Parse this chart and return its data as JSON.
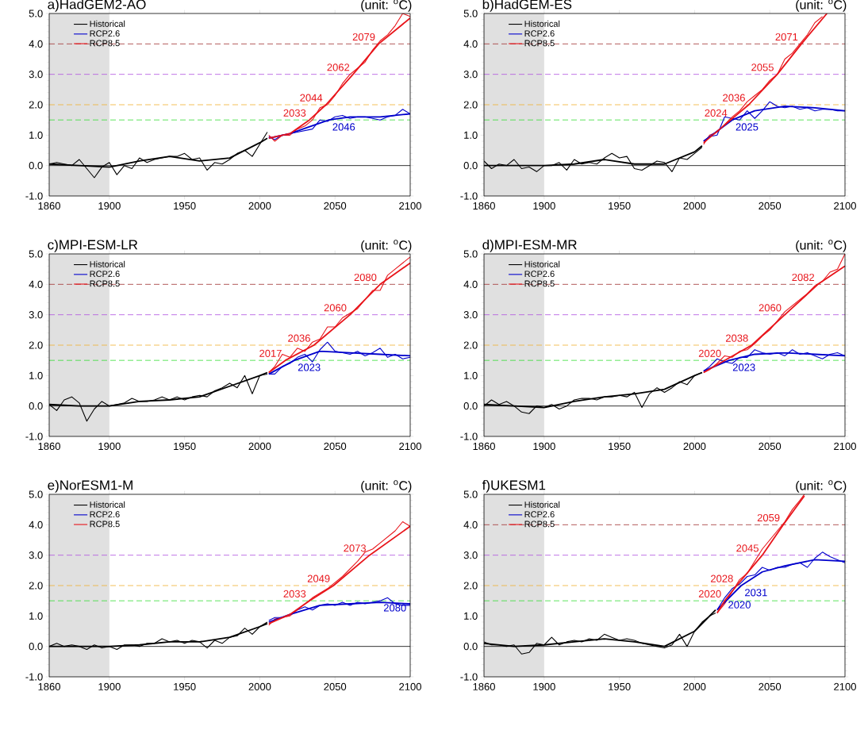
{
  "chart_data": [
    {
      "type": "line",
      "title": "a)HadGEM2-AO",
      "subtitle": "(unit: $^{o}$C)",
      "legend": "top left",
      "marker": "none",
      "line_style": "solid",
      "xlim": [
        1860,
        2100
      ],
      "ylim": [
        -1,
        5
      ],
      "xticks": [
        1860,
        1900,
        1950,
        2000,
        2050,
        2100
      ],
      "yticks": [
        {
          "value": -1,
          "label": "-1.0"
        },
        {
          "value": 0,
          "label": "0.0"
        },
        {
          "value": 1,
          "label": "1.0"
        },
        {
          "value": 2,
          "label": "2.0"
        },
        {
          "value": 3,
          "label": "3.0"
        },
        {
          "value": 4,
          "label": "4.0"
        },
        {
          "value": 5,
          "label": "5.0"
        }
      ],
      "series": [
        {
          "name": "Historical",
          "color": "#000000",
          "x": [
            1860,
            1865,
            1870,
            1875,
            1880,
            1885,
            1890,
            1895,
            1900,
            1905,
            1910,
            1915,
            1920,
            1925,
            1930,
            1935,
            1940,
            1945,
            1950,
            1955,
            1960,
            1965,
            1970,
            1975,
            1980,
            1985,
            1990,
            1995,
            2000,
            2005
          ],
          "values": [
            0.05,
            0.1,
            0.05,
            0.0,
            0.2,
            -0.1,
            -0.4,
            -0.05,
            0.1,
            -0.3,
            0.0,
            -0.1,
            0.25,
            0.1,
            0.2,
            0.25,
            0.3,
            0.3,
            0.4,
            0.2,
            0.25,
            -0.15,
            0.1,
            0.05,
            0.2,
            0.4,
            0.5,
            0.3,
            0.7,
            1.1
          ]
        },
        {
          "name": "RCP2.6",
          "color": "#0000cc",
          "x": [
            2006,
            2010,
            2015,
            2020,
            2025,
            2030,
            2035,
            2040,
            2045,
            2050,
            2055,
            2060,
            2065,
            2070,
            2075,
            2080,
            2085,
            2090,
            2095,
            2100
          ],
          "values": [
            0.95,
            0.85,
            1.0,
            1.05,
            1.1,
            1.15,
            1.2,
            1.5,
            1.45,
            1.6,
            1.65,
            1.55,
            1.6,
            1.6,
            1.55,
            1.5,
            1.6,
            1.65,
            1.85,
            1.7
          ]
        },
        {
          "name": "RCP8.5",
          "color": "#e8141a",
          "x": [
            2006,
            2010,
            2015,
            2020,
            2025,
            2030,
            2035,
            2040,
            2045,
            2050,
            2055,
            2060,
            2065,
            2070,
            2075,
            2080,
            2085,
            2090,
            2095,
            2100
          ],
          "values": [
            1.0,
            0.8,
            1.0,
            1.0,
            1.2,
            1.3,
            1.5,
            1.9,
            2.0,
            2.3,
            2.7,
            3.0,
            3.2,
            3.4,
            3.8,
            4.1,
            4.3,
            4.6,
            5.0,
            4.9
          ]
        },
        {
          "color": "#000000",
          "x": [
            1860,
            1880,
            1900,
            1920,
            1940,
            1960,
            1980,
            2000,
            2005
          ],
          "values": [
            0.05,
            0.0,
            -0.05,
            0.15,
            0.3,
            0.15,
            0.25,
            0.75,
            0.9
          ]
        },
        {
          "color": "#0000cc",
          "x": [
            2006,
            2020,
            2046,
            2060,
            2080,
            2100
          ],
          "values": [
            0.9,
            1.05,
            1.5,
            1.6,
            1.6,
            1.7
          ]
        },
        {
          "color": "#e8141a",
          "x": [
            2006,
            2020,
            2033,
            2044,
            2062,
            2079,
            2100
          ],
          "values": [
            0.9,
            1.05,
            1.5,
            2.0,
            3.0,
            4.0,
            4.85
          ]
        }
      ],
      "ref_lines": [
        {
          "axis": "y",
          "value": 0,
          "color": "#000000",
          "line_style": "solid"
        },
        {
          "axis": "y",
          "value": 1.5,
          "color": "#33dd33",
          "line_style": "dashed"
        },
        {
          "axis": "y",
          "value": 2,
          "color": "#f0b030",
          "line_style": "dashed"
        },
        {
          "axis": "y",
          "value": 3,
          "color": "#b050e0",
          "line_style": "dashed"
        },
        {
          "axis": "y",
          "value": 4,
          "color": "#a03030",
          "line_style": "dashed"
        }
      ],
      "bands": [
        {
          "axis": "x",
          "from": 1860,
          "to": 1900,
          "color": "#e0e0e0"
        }
      ],
      "annotations": [
        {
          "text": "2079",
          "x": 2079,
          "y": 4.0
        },
        {
          "text": "2062",
          "x": 2062,
          "y": 3.0
        },
        {
          "text": "2044",
          "x": 2044,
          "y": 2.0
        },
        {
          "text": "2033",
          "x": 2033,
          "y": 1.5
        },
        {
          "text": "2046",
          "x": 2046,
          "y": 1.5
        }
      ]
    },
    {
      "type": "line",
      "title": "b)HadGEM-ES",
      "subtitle": "(unit: $^{o}$C)",
      "legend": "top left",
      "marker": "none",
      "line_style": "solid",
      "xlim": [
        1860,
        2100
      ],
      "ylim": [
        -1,
        5
      ],
      "xticks": [
        1860,
        1900,
        1950,
        2000,
        2050,
        2100
      ],
      "yticks": [
        {
          "value": -1,
          "label": "-1.0"
        },
        {
          "value": 0,
          "label": "0.0"
        },
        {
          "value": 1,
          "label": "1.0"
        },
        {
          "value": 2,
          "label": "2.0"
        },
        {
          "value": 3,
          "label": "3.0"
        },
        {
          "value": 4,
          "label": "4.0"
        },
        {
          "value": 5,
          "label": "5.0"
        }
      ],
      "series": [
        {
          "name": "Historical",
          "color": "#000000",
          "x": [
            1860,
            1865,
            1870,
            1875,
            1880,
            1885,
            1890,
            1895,
            1900,
            1905,
            1910,
            1915,
            1920,
            1925,
            1930,
            1935,
            1940,
            1945,
            1950,
            1955,
            1960,
            1965,
            1970,
            1975,
            1980,
            1985,
            1990,
            1995,
            2000,
            2005
          ],
          "values": [
            0.15,
            -0.1,
            0.05,
            0.0,
            0.2,
            -0.1,
            -0.05,
            -0.2,
            0.0,
            0.0,
            0.1,
            -0.15,
            0.2,
            0.05,
            0.1,
            0.05,
            0.25,
            0.4,
            0.25,
            0.3,
            -0.1,
            -0.15,
            0.0,
            0.15,
            0.1,
            -0.2,
            0.25,
            0.2,
            0.4,
            0.6
          ]
        },
        {
          "name": "RCP2.6",
          "color": "#0000cc",
          "x": [
            2006,
            2010,
            2015,
            2020,
            2025,
            2030,
            2035,
            2040,
            2045,
            2050,
            2055,
            2060,
            2065,
            2070,
            2075,
            2080,
            2085,
            2090,
            2095,
            2100
          ],
          "values": [
            0.8,
            0.95,
            1.0,
            1.6,
            1.55,
            1.5,
            1.8,
            1.55,
            1.8,
            2.1,
            1.95,
            1.9,
            1.95,
            1.85,
            1.9,
            1.8,
            1.85,
            1.85,
            1.8,
            1.8
          ]
        },
        {
          "name": "RCP8.5",
          "color": "#e8141a",
          "x": [
            2006,
            2010,
            2015,
            2020,
            2025,
            2030,
            2035,
            2040,
            2045,
            2050,
            2055,
            2060,
            2065,
            2070,
            2075,
            2080,
            2085
          ],
          "values": [
            0.7,
            1.0,
            1.1,
            1.35,
            1.6,
            1.8,
            2.1,
            2.3,
            2.5,
            2.8,
            3.0,
            3.5,
            3.7,
            4.0,
            4.3,
            4.7,
            4.9
          ]
        },
        {
          "color": "#000000",
          "x": [
            1860,
            1880,
            1900,
            1920,
            1940,
            1960,
            1980,
            2000,
            2005
          ],
          "values": [
            0.0,
            0.0,
            0.0,
            0.05,
            0.2,
            0.05,
            0.05,
            0.45,
            0.65
          ]
        },
        {
          "color": "#0000cc",
          "x": [
            2006,
            2025,
            2040,
            2060,
            2080,
            2100
          ],
          "values": [
            0.8,
            1.5,
            1.8,
            1.95,
            1.9,
            1.8
          ]
        },
        {
          "color": "#e8141a",
          "x": [
            2006,
            2024,
            2036,
            2055,
            2071,
            2088
          ],
          "values": [
            0.75,
            1.5,
            2.0,
            3.0,
            4.0,
            5.0
          ]
        }
      ],
      "ref_lines": [
        {
          "axis": "y",
          "value": 0,
          "color": "#000000",
          "line_style": "solid"
        },
        {
          "axis": "y",
          "value": 1.5,
          "color": "#33dd33",
          "line_style": "dashed"
        },
        {
          "axis": "y",
          "value": 2,
          "color": "#f0b030",
          "line_style": "dashed"
        },
        {
          "axis": "y",
          "value": 3,
          "color": "#b050e0",
          "line_style": "dashed"
        },
        {
          "axis": "y",
          "value": 4,
          "color": "#a03030",
          "line_style": "dashed"
        }
      ],
      "bands": [
        {
          "axis": "x",
          "from": 1860,
          "to": 1900,
          "color": "#e0e0e0"
        }
      ],
      "annotations": [
        {
          "text": "2071",
          "x": 2071,
          "y": 4.0
        },
        {
          "text": "2055",
          "x": 2055,
          "y": 3.0
        },
        {
          "text": "2036",
          "x": 2036,
          "y": 2.0
        },
        {
          "text": "2024",
          "x": 2024,
          "y": 1.5
        },
        {
          "text": "2025",
          "x": 2025,
          "y": 1.5
        }
      ]
    },
    {
      "type": "line",
      "title": "c)MPI-ESM-LR",
      "subtitle": "(unit: $^{o}$C)",
      "legend": "top left",
      "marker": "none",
      "line_style": "solid",
      "xlim": [
        1860,
        2100
      ],
      "ylim": [
        -1,
        5
      ],
      "xticks": [
        1860,
        1900,
        1950,
        2000,
        2050,
        2100
      ],
      "yticks": [
        {
          "value": -1,
          "label": "-1.0"
        },
        {
          "value": 0,
          "label": "0.0"
        },
        {
          "value": 1,
          "label": "1.0"
        },
        {
          "value": 2,
          "label": "2.0"
        },
        {
          "value": 3,
          "label": "3.0"
        },
        {
          "value": 4,
          "label": "4.0"
        },
        {
          "value": 5,
          "label": "5.0"
        }
      ],
      "series": [
        {
          "name": "Historical",
          "color": "#000000",
          "x": [
            1860,
            1865,
            1870,
            1875,
            1880,
            1885,
            1890,
            1895,
            1900,
            1905,
            1910,
            1915,
            1920,
            1925,
            1930,
            1935,
            1940,
            1945,
            1950,
            1955,
            1960,
            1965,
            1970,
            1975,
            1980,
            1985,
            1990,
            1995,
            2000,
            2005
          ],
          "values": [
            0.05,
            -0.15,
            0.2,
            0.3,
            0.1,
            -0.5,
            -0.1,
            0.15,
            0.0,
            0.05,
            0.1,
            0.25,
            0.15,
            0.15,
            0.2,
            0.3,
            0.2,
            0.3,
            0.2,
            0.3,
            0.35,
            0.3,
            0.5,
            0.6,
            0.75,
            0.6,
            1.0,
            0.4,
            1.0,
            1.05
          ]
        },
        {
          "name": "RCP2.6",
          "color": "#0000cc",
          "x": [
            2006,
            2010,
            2015,
            2020,
            2025,
            2030,
            2035,
            2040,
            2045,
            2050,
            2055,
            2060,
            2065,
            2070,
            2075,
            2080,
            2085,
            2090,
            2095,
            2100
          ],
          "values": [
            1.05,
            1.05,
            1.3,
            1.4,
            1.6,
            1.7,
            1.45,
            1.85,
            2.1,
            1.8,
            1.75,
            1.7,
            1.8,
            1.65,
            1.75,
            1.9,
            1.6,
            1.7,
            1.55,
            1.6
          ]
        },
        {
          "name": "RCP8.5",
          "color": "#e8141a",
          "x": [
            2006,
            2010,
            2015,
            2020,
            2025,
            2030,
            2035,
            2040,
            2045,
            2050,
            2055,
            2060,
            2065,
            2070,
            2075,
            2080,
            2085,
            2090,
            2095,
            2100
          ],
          "values": [
            1.1,
            1.3,
            1.7,
            1.6,
            1.9,
            1.8,
            2.1,
            2.2,
            2.6,
            2.6,
            2.9,
            3.05,
            3.2,
            3.5,
            3.8,
            3.8,
            4.3,
            4.5,
            4.7,
            4.9
          ]
        },
        {
          "color": "#000000",
          "x": [
            1860,
            1880,
            1900,
            1920,
            1940,
            1960,
            1980,
            2000,
            2005
          ],
          "values": [
            0.05,
            0.0,
            0.0,
            0.15,
            0.2,
            0.3,
            0.65,
            1.0,
            1.1
          ]
        },
        {
          "color": "#0000cc",
          "x": [
            2006,
            2023,
            2040,
            2060,
            2080,
            2100
          ],
          "values": [
            1.05,
            1.5,
            1.8,
            1.75,
            1.7,
            1.65
          ]
        },
        {
          "color": "#e8141a",
          "x": [
            2006,
            2017,
            2036,
            2060,
            2080,
            2100
          ],
          "values": [
            1.1,
            1.5,
            2.0,
            3.0,
            4.0,
            4.7
          ]
        }
      ],
      "ref_lines": [
        {
          "axis": "y",
          "value": 0,
          "color": "#000000",
          "line_style": "solid"
        },
        {
          "axis": "y",
          "value": 1.5,
          "color": "#33dd33",
          "line_style": "dashed"
        },
        {
          "axis": "y",
          "value": 2,
          "color": "#f0b030",
          "line_style": "dashed"
        },
        {
          "axis": "y",
          "value": 3,
          "color": "#b050e0",
          "line_style": "dashed"
        },
        {
          "axis": "y",
          "value": 4,
          "color": "#a03030",
          "line_style": "dashed"
        }
      ],
      "bands": [
        {
          "axis": "x",
          "from": 1860,
          "to": 1900,
          "color": "#e0e0e0"
        }
      ],
      "annotations": [
        {
          "text": "2080",
          "x": 2080,
          "y": 4.0
        },
        {
          "text": "2060",
          "x": 2060,
          "y": 3.0
        },
        {
          "text": "2036",
          "x": 2036,
          "y": 2.0
        },
        {
          "text": "2017",
          "x": 2017,
          "y": 1.5
        },
        {
          "text": "2023",
          "x": 2023,
          "y": 1.5
        }
      ]
    },
    {
      "type": "line",
      "title": "d)MPI-ESM-MR",
      "subtitle": "(unit: $^{o}$C)",
      "legend": "top left",
      "marker": "none",
      "line_style": "solid",
      "xlim": [
        1860,
        2100
      ],
      "ylim": [
        -1,
        5
      ],
      "xticks": [
        1860,
        1900,
        1950,
        2000,
        2050,
        2100
      ],
      "yticks": [
        {
          "value": -1,
          "label": "-1.0"
        },
        {
          "value": 0,
          "label": "0.0"
        },
        {
          "value": 1,
          "label": "1.0"
        },
        {
          "value": 2,
          "label": "2.0"
        },
        {
          "value": 3,
          "label": "3.0"
        },
        {
          "value": 4,
          "label": "4.0"
        },
        {
          "value": 5,
          "label": "5.0"
        }
      ],
      "series": [
        {
          "name": "Historical",
          "color": "#000000",
          "x": [
            1860,
            1865,
            1870,
            1875,
            1880,
            1885,
            1890,
            1895,
            1900,
            1905,
            1910,
            1915,
            1920,
            1925,
            1930,
            1935,
            1940,
            1945,
            1950,
            1955,
            1960,
            1965,
            1970,
            1975,
            1980,
            1985,
            1990,
            1995,
            2000,
            2005
          ],
          "values": [
            0.0,
            0.2,
            0.05,
            0.15,
            0.0,
            -0.2,
            -0.25,
            0.0,
            -0.05,
            0.05,
            -0.1,
            0.0,
            0.2,
            0.25,
            0.25,
            0.2,
            0.3,
            0.3,
            0.35,
            0.3,
            0.45,
            -0.05,
            0.4,
            0.6,
            0.45,
            0.6,
            0.8,
            0.7,
            1.0,
            1.1
          ]
        },
        {
          "name": "RCP2.6",
          "color": "#0000cc",
          "x": [
            2006,
            2010,
            2015,
            2020,
            2025,
            2030,
            2035,
            2040,
            2045,
            2050,
            2055,
            2060,
            2065,
            2070,
            2075,
            2080,
            2085,
            2090,
            2095,
            2100
          ],
          "values": [
            1.15,
            1.3,
            1.55,
            1.45,
            1.4,
            1.6,
            1.6,
            1.85,
            1.75,
            1.7,
            1.75,
            1.65,
            1.85,
            1.7,
            1.75,
            1.65,
            1.55,
            1.7,
            1.75,
            1.65
          ]
        },
        {
          "name": "RCP8.5",
          "color": "#e8141a",
          "x": [
            2006,
            2010,
            2015,
            2020,
            2025,
            2030,
            2035,
            2040,
            2045,
            2050,
            2055,
            2060,
            2065,
            2070,
            2075,
            2080,
            2085,
            2090,
            2095,
            2100
          ],
          "values": [
            1.1,
            1.2,
            1.4,
            1.65,
            1.6,
            1.8,
            1.85,
            2.05,
            2.3,
            2.5,
            2.8,
            3.1,
            3.3,
            3.5,
            3.7,
            3.95,
            4.1,
            4.4,
            4.5,
            5.0
          ]
        },
        {
          "color": "#000000",
          "x": [
            1860,
            1880,
            1900,
            1920,
            1940,
            1960,
            1980,
            2000,
            2005
          ],
          "values": [
            0.05,
            0.0,
            -0.05,
            0.15,
            0.3,
            0.4,
            0.55,
            1.0,
            1.1
          ]
        },
        {
          "color": "#0000cc",
          "x": [
            2006,
            2023,
            2040,
            2060,
            2080,
            2100
          ],
          "values": [
            1.15,
            1.5,
            1.7,
            1.75,
            1.7,
            1.65
          ]
        },
        {
          "color": "#e8141a",
          "x": [
            2006,
            2020,
            2038,
            2060,
            2082,
            2100
          ],
          "values": [
            1.1,
            1.5,
            2.0,
            3.0,
            4.0,
            4.6
          ]
        }
      ],
      "ref_lines": [
        {
          "axis": "y",
          "value": 0,
          "color": "#000000",
          "line_style": "solid"
        },
        {
          "axis": "y",
          "value": 1.5,
          "color": "#33dd33",
          "line_style": "dashed"
        },
        {
          "axis": "y",
          "value": 2,
          "color": "#f0b030",
          "line_style": "dashed"
        },
        {
          "axis": "y",
          "value": 3,
          "color": "#b050e0",
          "line_style": "dashed"
        },
        {
          "axis": "y",
          "value": 4,
          "color": "#a03030",
          "line_style": "dashed"
        }
      ],
      "bands": [
        {
          "axis": "x",
          "from": 1860,
          "to": 1900,
          "color": "#e0e0e0"
        }
      ],
      "annotations": [
        {
          "text": "2082",
          "x": 2082,
          "y": 4.0
        },
        {
          "text": "2060",
          "x": 2060,
          "y": 3.0
        },
        {
          "text": "2038",
          "x": 2038,
          "y": 2.0
        },
        {
          "text": "2020",
          "x": 2020,
          "y": 1.5
        },
        {
          "text": "2023",
          "x": 2023,
          "y": 1.5
        }
      ]
    },
    {
      "type": "line",
      "title": "e)NorESM1-M",
      "subtitle": "(unit: $^{o}$C)",
      "legend": "top left",
      "marker": "none",
      "line_style": "solid",
      "xlim": [
        1860,
        2100
      ],
      "ylim": [
        -1,
        5
      ],
      "xticks": [
        1860,
        1900,
        1950,
        2000,
        2050,
        2100
      ],
      "yticks": [
        {
          "value": -1,
          "label": "-1.0"
        },
        {
          "value": 0,
          "label": "0.0"
        },
        {
          "value": 1,
          "label": "1.0"
        },
        {
          "value": 2,
          "label": "2.0"
        },
        {
          "value": 3,
          "label": "3.0"
        },
        {
          "value": 4,
          "label": "4.0"
        },
        {
          "value": 5,
          "label": "5.0"
        }
      ],
      "series": [
        {
          "name": "Historical",
          "color": "#000000",
          "x": [
            1860,
            1865,
            1870,
            1875,
            1880,
            1885,
            1890,
            1895,
            1900,
            1905,
            1910,
            1915,
            1920,
            1925,
            1930,
            1935,
            1940,
            1945,
            1950,
            1955,
            1960,
            1965,
            1970,
            1975,
            1980,
            1985,
            1990,
            1995,
            2000,
            2005
          ],
          "values": [
            0.0,
            0.1,
            0.0,
            0.05,
            0.0,
            -0.1,
            0.05,
            -0.05,
            0.0,
            -0.1,
            0.05,
            0.05,
            0.0,
            0.1,
            0.1,
            0.25,
            0.15,
            0.2,
            0.1,
            0.2,
            0.15,
            -0.05,
            0.2,
            0.1,
            0.3,
            0.35,
            0.6,
            0.4,
            0.65,
            0.8
          ]
        },
        {
          "name": "RCP2.6",
          "color": "#0000cc",
          "x": [
            2006,
            2010,
            2015,
            2020,
            2025,
            2030,
            2035,
            2040,
            2045,
            2050,
            2055,
            2060,
            2065,
            2070,
            2075,
            2080,
            2085,
            2090,
            2095,
            2100
          ],
          "values": [
            0.85,
            0.95,
            0.95,
            1.05,
            1.2,
            1.3,
            1.2,
            1.35,
            1.4,
            1.35,
            1.45,
            1.35,
            1.45,
            1.4,
            1.45,
            1.5,
            1.6,
            1.4,
            1.35,
            1.35
          ]
        },
        {
          "name": "RCP8.5",
          "color": "#e8141a",
          "x": [
            2006,
            2010,
            2015,
            2020,
            2025,
            2030,
            2035,
            2040,
            2045,
            2050,
            2055,
            2060,
            2065,
            2070,
            2075,
            2080,
            2085,
            2090,
            2095,
            2100
          ],
          "values": [
            0.7,
            0.9,
            0.95,
            1.0,
            1.2,
            1.4,
            1.6,
            1.75,
            1.9,
            2.1,
            2.3,
            2.55,
            2.8,
            3.1,
            3.2,
            3.4,
            3.6,
            3.8,
            4.1,
            3.95
          ]
        },
        {
          "color": "#000000",
          "x": [
            1860,
            1880,
            1900,
            1920,
            1940,
            1960,
            1980,
            2000,
            2005
          ],
          "values": [
            0.0,
            0.0,
            0.0,
            0.05,
            0.15,
            0.15,
            0.3,
            0.65,
            0.75
          ]
        },
        {
          "color": "#0000cc",
          "x": [
            2006,
            2020,
            2040,
            2060,
            2080,
            2100
          ],
          "values": [
            0.8,
            1.05,
            1.35,
            1.4,
            1.45,
            1.4
          ]
        },
        {
          "color": "#e8141a",
          "x": [
            2006,
            2020,
            2033,
            2049,
            2073,
            2100
          ],
          "values": [
            0.75,
            1.05,
            1.5,
            2.0,
            3.0,
            3.95
          ]
        }
      ],
      "ref_lines": [
        {
          "axis": "y",
          "value": 0,
          "color": "#000000",
          "line_style": "solid"
        },
        {
          "axis": "y",
          "value": 1.5,
          "color": "#33dd33",
          "line_style": "dashed"
        },
        {
          "axis": "y",
          "value": 2,
          "color": "#f0b030",
          "line_style": "dashed"
        },
        {
          "axis": "y",
          "value": 3,
          "color": "#b050e0",
          "line_style": "dashed"
        }
      ],
      "bands": [
        {
          "axis": "x",
          "from": 1860,
          "to": 1900,
          "color": "#e0e0e0"
        }
      ],
      "annotations": [
        {
          "text": "2073",
          "x": 2073,
          "y": 3.0
        },
        {
          "text": "2049",
          "x": 2049,
          "y": 2.0
        },
        {
          "text": "2033",
          "x": 2033,
          "y": 1.5
        },
        {
          "text": "2080",
          "x": 2080,
          "y": 1.5
        }
      ]
    },
    {
      "type": "line",
      "title": "f)UKESM1",
      "subtitle": "(unit: $^{o}$C)",
      "legend": "top left",
      "marker": "none",
      "line_style": "solid",
      "xlim": [
        1860,
        2100
      ],
      "ylim": [
        -1,
        5
      ],
      "xticks": [
        1860,
        1900,
        1950,
        2000,
        2050,
        2100
      ],
      "yticks": [
        {
          "value": -1,
          "label": "-1.0"
        },
        {
          "value": 0,
          "label": "0.0"
        },
        {
          "value": 1,
          "label": "1.0"
        },
        {
          "value": 2,
          "label": "2.0"
        },
        {
          "value": 3,
          "label": "3.0"
        },
        {
          "value": 4,
          "label": "4.0"
        },
        {
          "value": 5,
          "label": "5.0"
        }
      ],
      "series": [
        {
          "name": "Historical",
          "color": "#000000",
          "x": [
            1860,
            1865,
            1870,
            1875,
            1880,
            1885,
            1890,
            1895,
            1900,
            1905,
            1910,
            1915,
            1920,
            1925,
            1930,
            1935,
            1940,
            1945,
            1950,
            1955,
            1960,
            1965,
            1970,
            1975,
            1980,
            1985,
            1990,
            1995,
            2000,
            2005,
            2010,
            2014
          ],
          "values": [
            0.15,
            0.05,
            0.05,
            0.0,
            0.05,
            -0.25,
            -0.2,
            0.1,
            0.05,
            0.3,
            0.05,
            0.15,
            0.2,
            0.15,
            0.25,
            0.2,
            0.4,
            0.3,
            0.2,
            0.25,
            0.2,
            0.1,
            0.05,
            0.0,
            -0.05,
            0.05,
            0.4,
            0.0,
            0.5,
            0.8,
            1.0,
            1.1
          ]
        },
        {
          "name": "RCP2.6",
          "color": "#0000cc",
          "x": [
            2015,
            2020,
            2025,
            2030,
            2035,
            2040,
            2045,
            2050,
            2055,
            2060,
            2065,
            2070,
            2075,
            2080,
            2085,
            2090,
            2095,
            2100
          ],
          "values": [
            1.2,
            1.6,
            1.9,
            2.05,
            2.3,
            2.35,
            2.6,
            2.5,
            2.6,
            2.6,
            2.7,
            2.75,
            2.6,
            2.9,
            3.1,
            2.95,
            2.85,
            2.75
          ]
        },
        {
          "name": "RCP8.5",
          "color": "#e8141a",
          "x": [
            2015,
            2020,
            2025,
            2030,
            2035,
            2040,
            2045,
            2050,
            2055,
            2060,
            2065,
            2070,
            2073
          ],
          "values": [
            1.1,
            1.4,
            1.8,
            2.2,
            2.4,
            2.8,
            3.2,
            3.5,
            3.8,
            4.1,
            4.5,
            4.8,
            5.0
          ]
        },
        {
          "color": "#000000",
          "x": [
            1860,
            1880,
            1900,
            1920,
            1940,
            1960,
            1980,
            2000,
            2014
          ],
          "values": [
            0.1,
            0.0,
            0.05,
            0.15,
            0.25,
            0.15,
            0.0,
            0.5,
            1.2
          ]
        },
        {
          "color": "#0000cc",
          "x": [
            2015,
            2031,
            2045,
            2060,
            2080,
            2100
          ],
          "values": [
            1.2,
            2.0,
            2.45,
            2.65,
            2.85,
            2.8
          ]
        },
        {
          "color": "#e8141a",
          "x": [
            2015,
            2020,
            2028,
            2045,
            2059,
            2073
          ],
          "values": [
            1.1,
            1.5,
            2.0,
            3.0,
            4.0,
            4.95
          ]
        }
      ],
      "ref_lines": [
        {
          "axis": "y",
          "value": 0,
          "color": "#000000",
          "line_style": "solid"
        },
        {
          "axis": "y",
          "value": 1.5,
          "color": "#33dd33",
          "line_style": "dashed"
        },
        {
          "axis": "y",
          "value": 2,
          "color": "#f0b030",
          "line_style": "dashed"
        },
        {
          "axis": "y",
          "value": 3,
          "color": "#b050e0",
          "line_style": "dashed"
        },
        {
          "axis": "y",
          "value": 4,
          "color": "#a03030",
          "line_style": "dashed"
        }
      ],
      "bands": [
        {
          "axis": "x",
          "from": 1860,
          "to": 1900,
          "color": "#e0e0e0"
        }
      ],
      "annotations": [
        {
          "text": "2059",
          "x": 2059,
          "y": 4.0
        },
        {
          "text": "2045",
          "x": 2045,
          "y": 3.0
        },
        {
          "text": "2028",
          "x": 2028,
          "y": 2.0
        },
        {
          "text": "2020",
          "x": 2020,
          "y": 1.5
        },
        {
          "text": "2031",
          "x": 2031,
          "y": 2.0
        },
        {
          "text": "2020",
          "x": 2020,
          "y": 1.6
        }
      ]
    }
  ]
}
